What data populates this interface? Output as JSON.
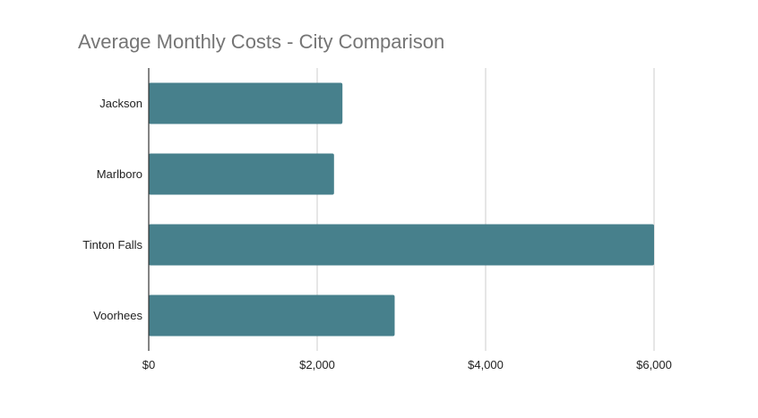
{
  "chart_data": {
    "type": "bar",
    "orientation": "horizontal",
    "title": "Average Monthly Costs - City Comparison",
    "xlabel": "",
    "ylabel": "",
    "categories": [
      "Jackson",
      "Marlboro",
      "Tinton Falls",
      "Voorhees"
    ],
    "values": [
      2300,
      2200,
      6000,
      2920
    ],
    "xlim": [
      0,
      6000
    ],
    "x_ticks": [
      0,
      2000,
      4000,
      6000
    ],
    "x_tick_labels": [
      "$0",
      "$2,000",
      "$4,000",
      "$6,000"
    ],
    "grid": true,
    "legend": "none",
    "bar_color": "#47808c",
    "grid_color": "#cccccc",
    "axis_color": "#333333"
  }
}
